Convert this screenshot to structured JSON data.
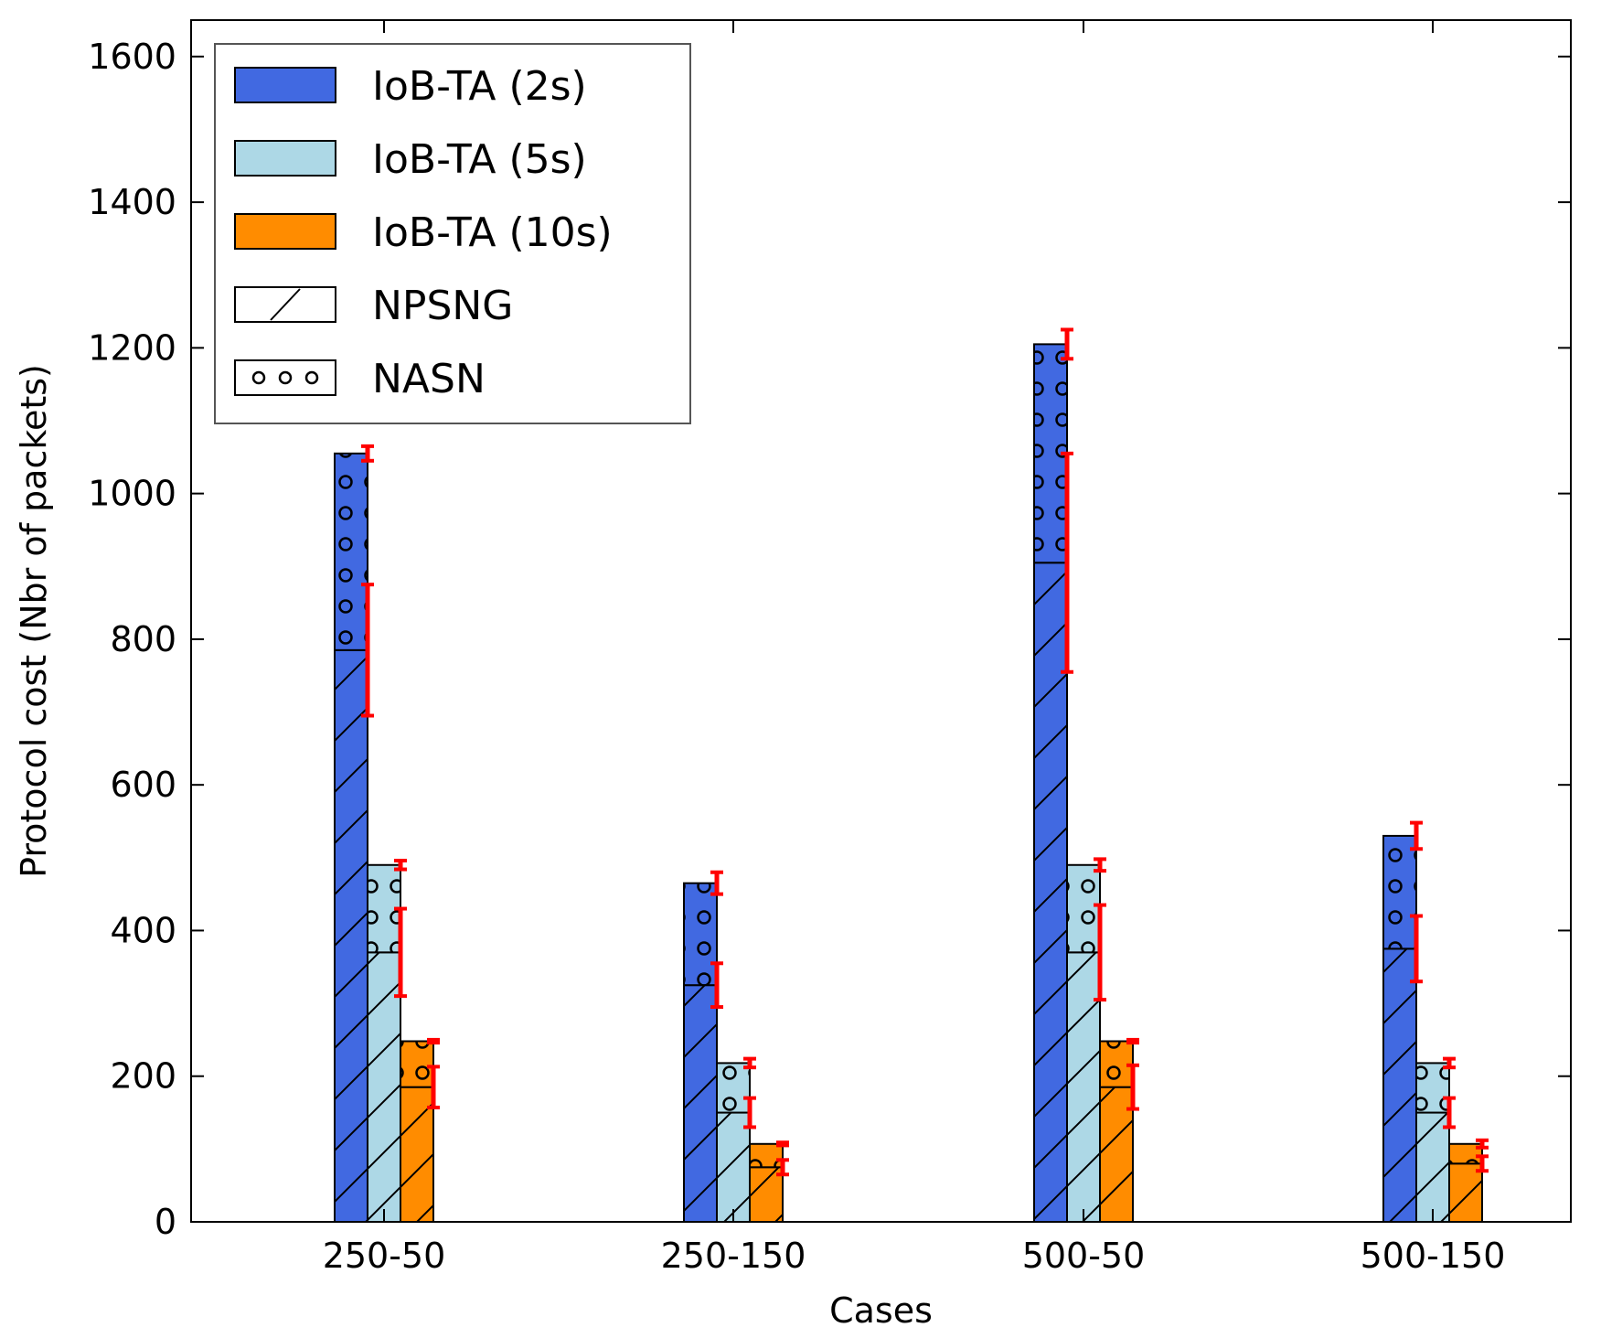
{
  "chart_data": {
    "type": "stacked-grouped-bar",
    "title": "",
    "xlabel": "Cases",
    "ylabel": "Protocol cost (Nbr of packets)",
    "ylim": [
      0,
      1650
    ],
    "yticks": [
      0,
      200,
      400,
      600,
      800,
      1000,
      1200,
      1400,
      1600
    ],
    "grid": false,
    "legend_position": "top-left",
    "categories": [
      "250-50",
      "250-150",
      "500-50",
      "500-150"
    ],
    "series": [
      {
        "name": "IoB-TA (2s)",
        "color": "#4169e1",
        "npsng": [
          785,
          325,
          905,
          375
        ],
        "npsng_err": [
          90,
          30,
          150,
          45
        ],
        "total": [
          1055,
          465,
          1205,
          530
        ],
        "total_err": [
          10,
          15,
          20,
          18
        ]
      },
      {
        "name": "IoB-TA (5s)",
        "color": "#add8e6",
        "npsng": [
          370,
          150,
          370,
          150
        ],
        "npsng_err": [
          60,
          20,
          65,
          20
        ],
        "total": [
          490,
          218,
          490,
          218
        ],
        "total_err": [
          6,
          6,
          8,
          6
        ]
      },
      {
        "name": "IoB-TA (10s)",
        "color": "#ff8c00",
        "npsng": [
          185,
          75,
          185,
          80
        ],
        "npsng_err": [
          28,
          10,
          30,
          10
        ],
        "total": [
          248,
          107,
          248,
          107
        ],
        "total_err": [
          2,
          2,
          2,
          5
        ]
      }
    ],
    "legend": [
      {
        "label": "IoB-TA (2s)",
        "kind": "fill",
        "color": "#4169e1"
      },
      {
        "label": "IoB-TA (5s)",
        "kind": "fill",
        "color": "#add8e6"
      },
      {
        "label": "IoB-TA (10s)",
        "kind": "fill",
        "color": "#ff8c00"
      },
      {
        "label": "NPSNG",
        "kind": "hatch"
      },
      {
        "label": "NASN",
        "kind": "dots"
      }
    ],
    "errorbar_color": "#ff0000"
  }
}
